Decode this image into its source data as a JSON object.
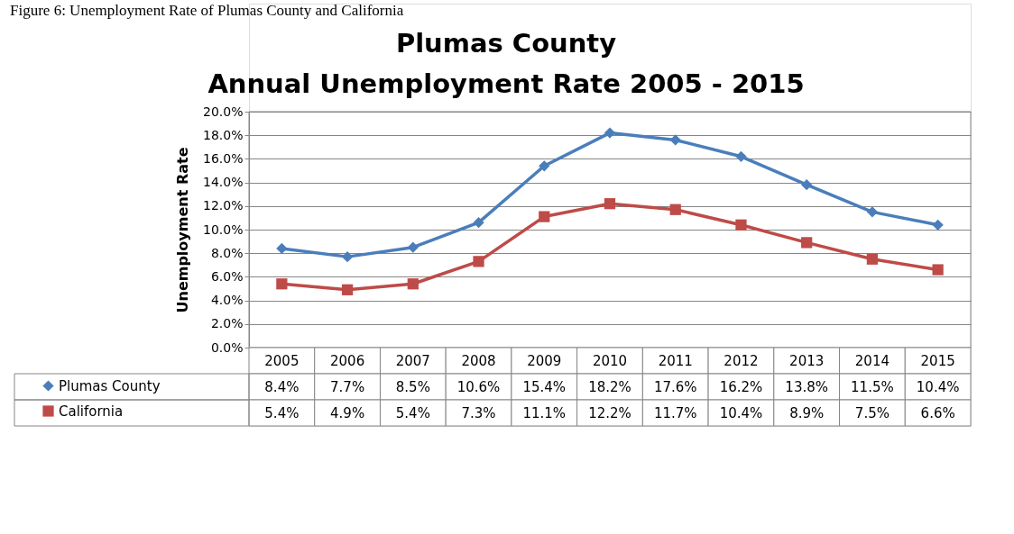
{
  "chart_data": {
    "type": "line",
    "title": "Plumas County",
    "subtitle": "Annual Unemployment Rate 2005 - 2015",
    "ylabel": "Unemployment Rate",
    "annotations": [
      "Figure 6: Unemployment Rate of Plumas County and California"
    ],
    "categories": [
      "2005",
      "2006",
      "2007",
      "2008",
      "2009",
      "2010",
      "2011",
      "2012",
      "2013",
      "2014",
      "2015"
    ],
    "series": [
      {
        "name": "Plumas County",
        "color": "#4a7ebb",
        "marker": "diamond",
        "values": [
          8.4,
          7.7,
          8.5,
          10.6,
          15.4,
          18.2,
          17.6,
          16.2,
          13.8,
          11.5,
          10.4
        ],
        "value_labels": [
          "8.4%",
          "7.7%",
          "8.5%",
          "10.6%",
          "15.4%",
          "18.2%",
          "17.6%",
          "16.2%",
          "13.8%",
          "11.5%",
          "10.4%"
        ]
      },
      {
        "name": "California",
        "color": "#be4b48",
        "marker": "square",
        "values": [
          5.4,
          4.9,
          5.4,
          7.3,
          11.1,
          12.2,
          11.7,
          10.4,
          8.9,
          7.5,
          6.6
        ],
        "value_labels": [
          "5.4%",
          "4.9%",
          "5.4%",
          "7.3%",
          "11.1%",
          "12.2%",
          "11.7%",
          "10.4%",
          "8.9%",
          "7.5%",
          "6.6%"
        ]
      }
    ],
    "ylim": [
      0,
      20
    ],
    "yticks": [
      {
        "value": 0,
        "label": "0.0%"
      },
      {
        "value": 2,
        "label": "2.0%"
      },
      {
        "value": 4,
        "label": "4.0%"
      },
      {
        "value": 6,
        "label": "6.0%"
      },
      {
        "value": 8,
        "label": "8.0%"
      },
      {
        "value": 10,
        "label": "10.0%"
      },
      {
        "value": 12,
        "label": "12.0%"
      },
      {
        "value": 14,
        "label": "14.0%"
      },
      {
        "value": 16,
        "label": "16.0%"
      },
      {
        "value": 18,
        "label": "18.0%"
      },
      {
        "value": 20,
        "label": "20.0%"
      }
    ],
    "grid": "y",
    "legend": "bottom left",
    "line_style": "solid"
  }
}
